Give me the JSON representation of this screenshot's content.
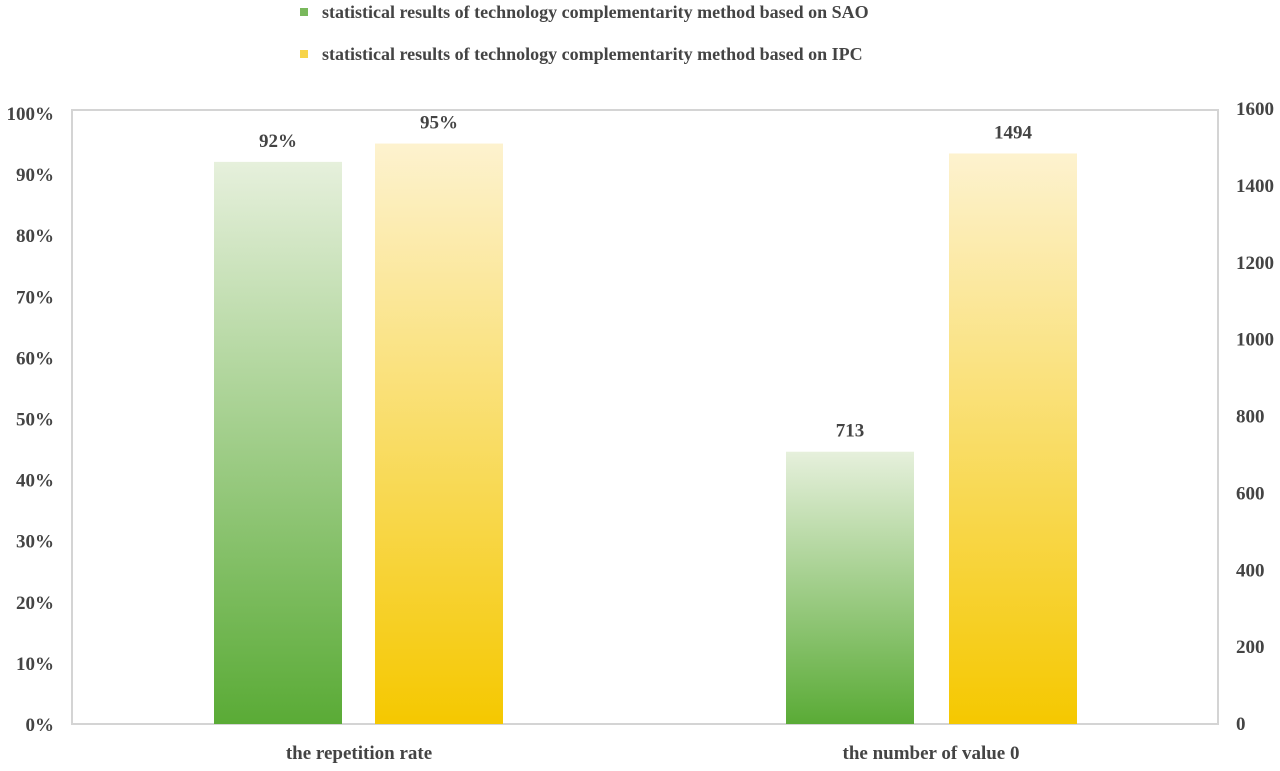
{
  "chart_data": {
    "type": "bar",
    "categories": [
      "the repetition rate",
      "the number of value 0"
    ],
    "series": [
      {
        "name": "statistical results of technology complementarity method  based on SAO",
        "color": "#5aab36",
        "values": [
          0.92,
          713
        ],
        "labels": [
          "92%",
          "713"
        ]
      },
      {
        "name": "statistical results of technology complementarity method  based on IPC",
        "color": "#f5c800",
        "values": [
          0.95,
          1494
        ],
        "labels": [
          "95%",
          "1494"
        ]
      }
    ],
    "axes": {
      "left": {
        "range": [
          0,
          1
        ],
        "ticks": [
          "0%",
          "10%",
          "20%",
          "30%",
          "40%",
          "50%",
          "60%",
          "70%",
          "80%",
          "90%",
          "100%"
        ],
        "applies_to": "the repetition rate"
      },
      "right": {
        "range": [
          0,
          1600
        ],
        "ticks": [
          "0",
          "200",
          "400",
          "600",
          "800",
          "1000",
          "1200",
          "1400",
          "1600"
        ],
        "applies_to": "the number of value 0"
      }
    },
    "legend": "top-center",
    "grid": false
  }
}
